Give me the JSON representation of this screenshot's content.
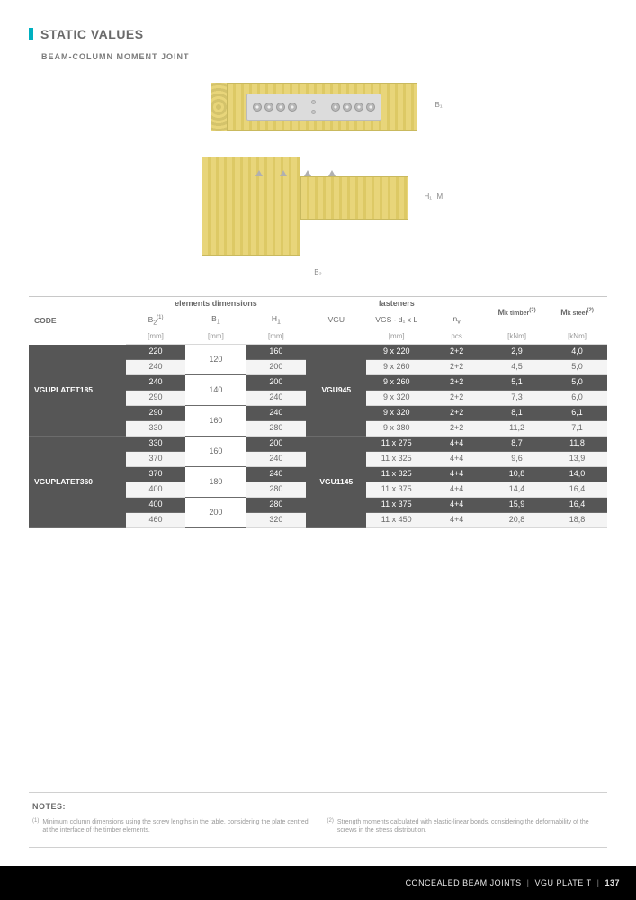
{
  "header": {
    "title": "STATIC VALUES",
    "subtitle": "BEAM-COLUMN MOMENT JOINT"
  },
  "diagram_labels": {
    "b1": "B₁",
    "b2": "B₂",
    "h1": "H₁",
    "m": "M"
  },
  "table": {
    "head": {
      "code": "CODE",
      "group_elem": "elements dimensions",
      "group_fast": "fasteners",
      "mk_timber": "M",
      "mk_timber_sub": "k timber",
      "mk_timber_sup": "(2)",
      "mk_steel": "M",
      "mk_steel_sub": "k steel",
      "mk_steel_sup": "(2)",
      "b2": "B",
      "b2_sub": "2",
      "b2_sup": "(1)",
      "b1": "B",
      "b1_sub": "1",
      "h1": "H",
      "h1_sub": "1",
      "vgu": "VGU",
      "vgs": "VGS - d₁ x L",
      "nv": "n",
      "nv_sub": "v",
      "u_mm": "[mm]",
      "u_pcs": "pcs",
      "u_knm": "[kNm]"
    },
    "codes": [
      "VGUPLATET185",
      "VGUPLATET360"
    ],
    "vgus": [
      "VGU945",
      "VGU1145"
    ],
    "rows": [
      {
        "dark": true,
        "b2": "220",
        "b1": "120",
        "b1span": 2,
        "h1": "160",
        "vgs": "9 x 220",
        "nv": "2+2",
        "mt": "2,9",
        "ms": "4,0"
      },
      {
        "dark": false,
        "b2": "240",
        "h1": "200",
        "vgs": "9 x 260",
        "nv": "2+2",
        "mt": "4,5",
        "ms": "5,0"
      },
      {
        "dark": true,
        "b2": "240",
        "b1": "140",
        "b1span": 2,
        "h1": "200",
        "vgs": "9 x 260",
        "nv": "2+2",
        "mt": "5,1",
        "ms": "5,0"
      },
      {
        "dark": false,
        "b2": "290",
        "h1": "240",
        "vgs": "9 x 320",
        "nv": "2+2",
        "mt": "7,3",
        "ms": "6,0"
      },
      {
        "dark": true,
        "b2": "290",
        "b1": "160",
        "b1span": 2,
        "h1": "240",
        "vgs": "9 x 320",
        "nv": "2+2",
        "mt": "8,1",
        "ms": "6,1"
      },
      {
        "dark": false,
        "b2": "330",
        "h1": "280",
        "vgs": "9 x 380",
        "nv": "2+2",
        "mt": "11,2",
        "ms": "7,1"
      },
      {
        "dark": true,
        "b2": "330",
        "b1": "160",
        "b1span": 2,
        "h1": "200",
        "vgs": "11 x 275",
        "nv": "4+4",
        "mt": "8,7",
        "ms": "11,8"
      },
      {
        "dark": false,
        "b2": "370",
        "h1": "240",
        "vgs": "11 x 325",
        "nv": "4+4",
        "mt": "9,6",
        "ms": "13,9"
      },
      {
        "dark": true,
        "b2": "370",
        "b1": "180",
        "b1span": 2,
        "h1": "240",
        "vgs": "11 x 325",
        "nv": "4+4",
        "mt": "10,8",
        "ms": "14,0"
      },
      {
        "dark": false,
        "b2": "400",
        "h1": "280",
        "vgs": "11 x 375",
        "nv": "4+4",
        "mt": "14,4",
        "ms": "16,4"
      },
      {
        "dark": true,
        "b2": "400",
        "b1": "200",
        "b1span": 2,
        "h1": "280",
        "vgs": "11 x 375",
        "nv": "4+4",
        "mt": "15,9",
        "ms": "16,4"
      },
      {
        "dark": false,
        "b2": "460",
        "h1": "320",
        "vgs": "11 x 450",
        "nv": "4+4",
        "mt": "20,8",
        "ms": "18,8"
      }
    ]
  },
  "notes": {
    "title": "NOTES:",
    "n1_sup": "(1)",
    "n1": "Minimum column dimensions using the screw lengths in the table, considering the plate centred at the interface of the timber elements.",
    "n2_sup": "(2)",
    "n2": "Strength moments calculated with elastic-linear bonds, considering the deformability of the screws in the stress distribution."
  },
  "footer": {
    "section": "CONCEALED BEAM JOINTS",
    "product": "VGU PLATE T",
    "page": "137"
  }
}
